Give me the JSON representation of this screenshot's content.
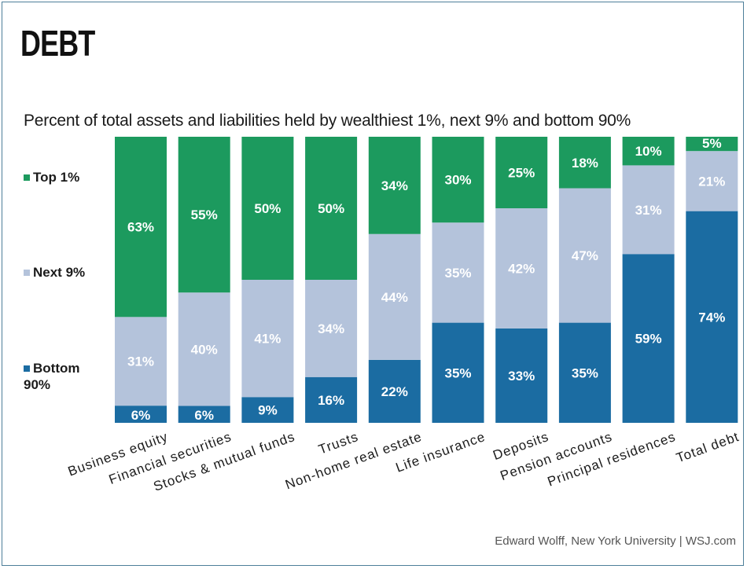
{
  "title": "DEBT",
  "colors": {
    "top1": "#1c9a5e",
    "next9": "#b4c3db",
    "bottom90": "#1b6ca2",
    "label": "#ffffff"
  },
  "legend": {
    "top1": "Top 1%",
    "next9": "Next 9%",
    "bottom90_line1": "Bottom",
    "bottom90_line2": "90%"
  },
  "source": "Edward Wolff, New York University  |  WSJ.com",
  "chart_data": {
    "type": "bar",
    "stacked": true,
    "title": "DEBT",
    "subtitle": "Percent of total assets and liabilities held by wealthiest 1%, next 9% and bottom 90%",
    "categories": [
      "Business equity",
      "Financial securities",
      "Stocks & mutual funds",
      "Trusts",
      "Non-home real estate",
      "Life insurance",
      "Deposits",
      "Pension accounts",
      "Principal residences",
      "Total debt"
    ],
    "series": [
      {
        "name": "Bottom 90%",
        "values": [
          6,
          6,
          9,
          16,
          22,
          35,
          33,
          35,
          59,
          74
        ]
      },
      {
        "name": "Next 9%",
        "values": [
          31,
          40,
          41,
          34,
          44,
          35,
          42,
          47,
          31,
          21
        ]
      },
      {
        "name": "Top 1%",
        "values": [
          63,
          55,
          50,
          50,
          34,
          30,
          25,
          18,
          10,
          5
        ]
      }
    ],
    "data_labels": [
      [
        "6%",
        "6%",
        "9%",
        "16%",
        "22%",
        "35%",
        "33%",
        "35%",
        "59%",
        "74%"
      ],
      [
        "31%",
        "40%",
        "41%",
        "34%",
        "44%",
        "35%",
        "42%",
        "47%",
        "31%",
        "21%"
      ],
      [
        "63%",
        "55%",
        "50%",
        "50%",
        "34%",
        "30%",
        "25%",
        "18%",
        "10%",
        "5%"
      ]
    ],
    "ylim": [
      0,
      100
    ],
    "grid": false,
    "legend_position": "left"
  }
}
